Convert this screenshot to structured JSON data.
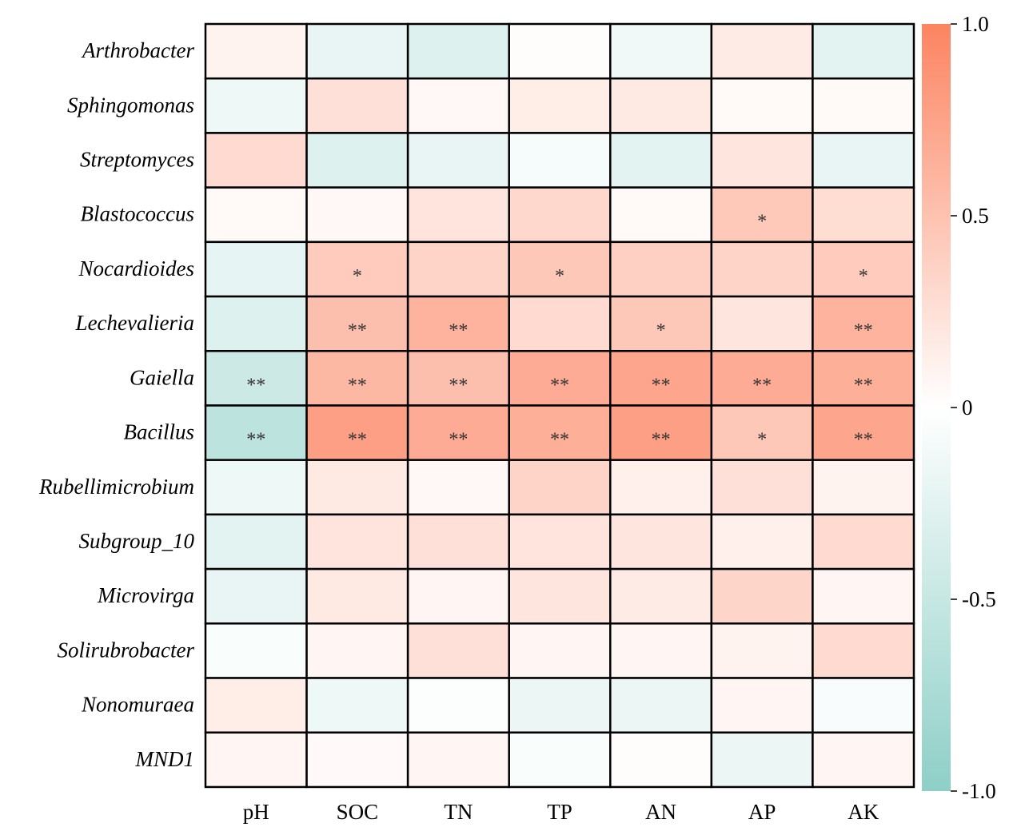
{
  "chart_data": {
    "type": "heatmap",
    "title": "",
    "xlabel": "",
    "ylabel": "",
    "columns": [
      "pH",
      "SOC",
      "TN",
      "TP",
      "AN",
      "AP",
      "AK"
    ],
    "rows": [
      "Arthrobacter",
      "Sphingomonas",
      "Streptomyces",
      "Blastococcus",
      "Nocardioides",
      "Lechevalieria",
      "Gaiella",
      "Bacillus",
      "Rubellimicrobium",
      "Subgroup_10",
      "Microvirga",
      "Solirubrobacter",
      "Nonomuraea",
      "MND1"
    ],
    "values": [
      [
        0.1,
        -0.2,
        -0.3,
        0.02,
        -0.12,
        0.16,
        -0.25
      ],
      [
        -0.15,
        0.25,
        0.06,
        0.15,
        0.18,
        0.05,
        0.05
      ],
      [
        0.3,
        -0.3,
        -0.2,
        -0.08,
        -0.25,
        0.2,
        -0.2
      ],
      [
        0.05,
        0.06,
        0.22,
        0.32,
        0.05,
        0.44,
        0.28
      ],
      [
        -0.22,
        0.42,
        0.35,
        0.45,
        0.38,
        0.35,
        0.42
      ],
      [
        -0.3,
        0.52,
        0.62,
        0.3,
        0.45,
        0.2,
        0.62
      ],
      [
        -0.45,
        0.58,
        0.52,
        0.68,
        0.72,
        0.68,
        0.65
      ],
      [
        -0.58,
        0.78,
        0.68,
        0.65,
        0.78,
        0.45,
        0.72
      ],
      [
        -0.15,
        0.18,
        0.06,
        0.35,
        0.12,
        0.25,
        0.1
      ],
      [
        -0.25,
        0.22,
        0.25,
        0.22,
        0.2,
        0.12,
        0.3
      ],
      [
        -0.2,
        0.18,
        0.08,
        0.2,
        0.16,
        0.34,
        0.08
      ],
      [
        -0.05,
        0.08,
        0.25,
        0.08,
        0.08,
        0.1,
        0.3
      ],
      [
        0.15,
        -0.15,
        -0.03,
        -0.18,
        -0.18,
        0.08,
        -0.06
      ],
      [
        0.08,
        0.04,
        0.08,
        -0.05,
        0.02,
        -0.18,
        0.08
      ]
    ],
    "significance": [
      [
        "",
        "",
        "",
        "",
        "",
        "",
        ""
      ],
      [
        "",
        "",
        "",
        "",
        "",
        "",
        ""
      ],
      [
        "",
        "",
        "",
        "",
        "",
        "",
        ""
      ],
      [
        "",
        "",
        "",
        "",
        "",
        "*",
        ""
      ],
      [
        "",
        "*",
        "",
        "*",
        "",
        "",
        "*"
      ],
      [
        "",
        "**",
        "**",
        "",
        "*",
        "",
        "**"
      ],
      [
        "**",
        "**",
        "**",
        "**",
        "**",
        "**",
        "**"
      ],
      [
        "**",
        "**",
        "**",
        "**",
        "**",
        "*",
        "**"
      ],
      [
        "",
        "",
        "",
        "",
        "",
        "",
        ""
      ],
      [
        "",
        "",
        "",
        "",
        "",
        "",
        ""
      ],
      [
        "",
        "",
        "",
        "",
        "",
        "",
        ""
      ],
      [
        "",
        "",
        "",
        "",
        "",
        "",
        ""
      ],
      [
        "",
        "",
        "",
        "",
        "",
        "",
        ""
      ],
      [
        "",
        "",
        "",
        "",
        "",
        "",
        ""
      ]
    ],
    "colorbar": {
      "min": -1.0,
      "max": 1.0,
      "ticks": [
        1.0,
        0.5,
        0,
        -0.5,
        -1.0
      ],
      "tick_labels": [
        "1.0",
        "0.5",
        "0",
        "-0.5",
        "-1.0"
      ],
      "low_color": "#8ecfc7",
      "mid_color": "#ffffff",
      "high_color": "#fc8461"
    },
    "grid": true,
    "cell_border_color": "#000000"
  }
}
